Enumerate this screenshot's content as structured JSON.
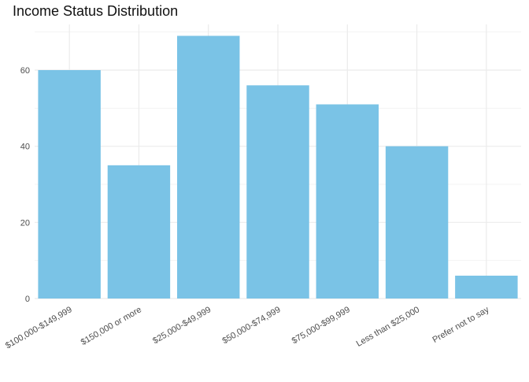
{
  "chart_data": {
    "type": "bar",
    "title": "Income Status Distribution",
    "xlabel": "",
    "ylabel": "",
    "categories": [
      "$100,000-$149,999",
      "$150,000 or more",
      "$25,000-$49,999",
      "$50,000-$74,999",
      "$75,000-$99,999",
      "Less than $25,000",
      "Prefer not to say"
    ],
    "values": [
      60,
      35,
      69,
      56,
      51,
      40,
      6
    ],
    "ylim": [
      0,
      72
    ],
    "yticks": [
      0,
      20,
      40,
      60
    ],
    "grid": true,
    "legend": "none",
    "colors": {
      "bar": "#7AC3E6",
      "grid_major": "#EBEBEB",
      "grid_minor": "#F3F3F3",
      "tick_label": "#4D4D4D",
      "background": "#FFFFFF"
    }
  }
}
